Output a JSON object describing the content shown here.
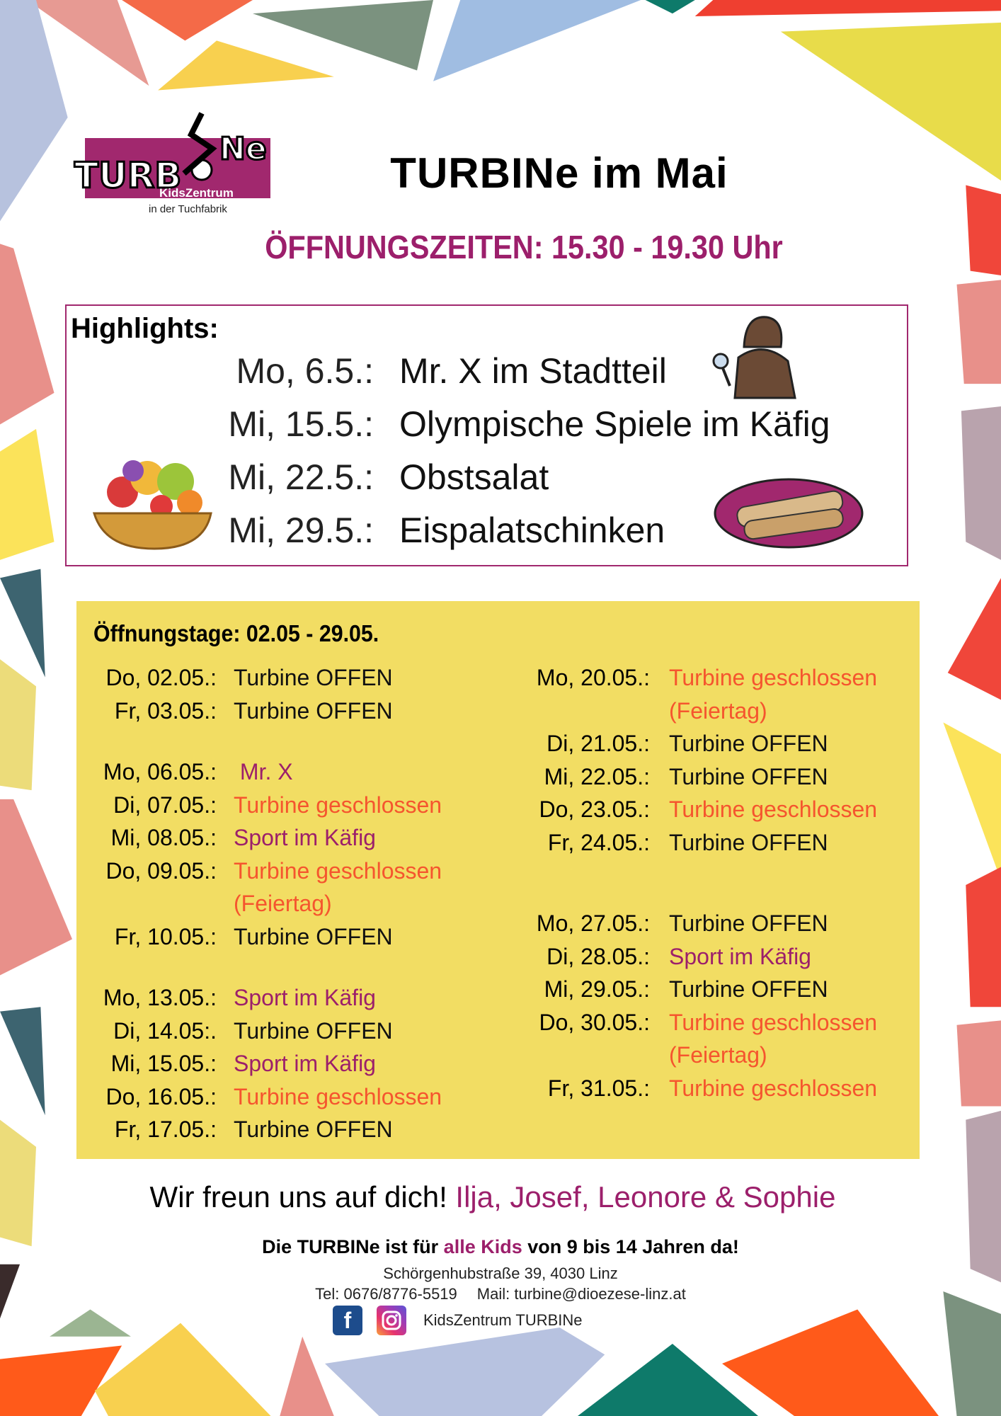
{
  "header": {
    "logo_text": "TURBINe KidsZentrum in der Tuchfabrik",
    "title": "TURBINe im Mai",
    "hours": "ÖFFNUNGSZEITEN: 15.30 - 19.30 Uhr"
  },
  "highlights": {
    "title": "Highlights:",
    "items": [
      {
        "date": "Mo, 6.5.:",
        "event": "Mr. X im Stadtteil"
      },
      {
        "date": "Mi, 15.5.:",
        "event": "Olympische Spiele im Käfig"
      },
      {
        "date": "Mi, 22.5.:",
        "event": "Obstsalat"
      },
      {
        "date": "Mi, 29.5.:",
        "event": "Eispalatschinken"
      }
    ]
  },
  "schedule": {
    "title": "Öffnungstage: 02.05 - 29.05.",
    "colors": {
      "open": "#111111",
      "closed": "#f5552e",
      "sport": "#9c1f6b",
      "background": "#f2dd63"
    },
    "left": [
      [
        {
          "date": "Do, 02.05.:",
          "text": "Turbine OFFEN",
          "type": "open"
        },
        {
          "date": "Fr, 03.05.:",
          "text": "Turbine OFFEN",
          "type": "open"
        }
      ],
      [
        {
          "date": "Mo, 06.05.:",
          "text": " Mr. X",
          "type": "sport"
        },
        {
          "date": "Di, 07.05.:",
          "text": "Turbine geschlossen",
          "type": "closed"
        },
        {
          "date": "Mi, 08.05.:",
          "text": "Sport im Käfig",
          "type": "sport"
        },
        {
          "date": "Do, 09.05.:",
          "text": "Turbine geschlossen",
          "note": "(Feiertag)",
          "type": "closed"
        },
        {
          "date": "Fr, 10.05.:",
          "text": "Turbine OFFEN",
          "type": "open"
        }
      ],
      [
        {
          "date": "Mo, 13.05.:",
          "text": "Sport im Käfig",
          "type": "sport"
        },
        {
          "date": "Di, 14.05:.",
          "text": "Turbine OFFEN",
          "type": "open"
        },
        {
          "date": "Mi, 15.05.:",
          "text": "Sport im Käfig",
          "type": "sport"
        },
        {
          "date": "Do, 16.05.:",
          "text": "Turbine geschlossen",
          "type": "closed"
        },
        {
          "date": "Fr, 17.05.:",
          "text": "Turbine OFFEN",
          "type": "open"
        }
      ]
    ],
    "right": [
      [
        {
          "date": "Mo, 20.05.:",
          "text": "Turbine geschlossen",
          "note": "(Feiertag)",
          "type": "closed"
        },
        {
          "date": "Di, 21.05.:",
          "text": "Turbine OFFEN",
          "type": "open"
        },
        {
          "date": "Mi, 22.05.:",
          "text": "Turbine OFFEN",
          "type": "open"
        },
        {
          "date": "Do, 23.05.:",
          "text": "Turbine geschlossen",
          "type": "closed"
        },
        {
          "date": "Fr, 24.05.:",
          "text": "Turbine OFFEN",
          "type": "open"
        }
      ],
      [
        {
          "date": "Mo, 27.05.:",
          "text": "Turbine OFFEN",
          "type": "open"
        },
        {
          "date": "Di, 28.05.:",
          "text": "Sport im Käfig",
          "type": "sport"
        },
        {
          "date": "Mi, 29.05.:",
          "text": "Turbine OFFEN",
          "type": "open"
        },
        {
          "date": "Do, 30.05.:",
          "text": "Turbine geschlossen",
          "note": "(Feiertag)",
          "type": "closed"
        },
        {
          "date": "Fr, 31.05.:",
          "text": "Turbine geschlossen",
          "type": "closed"
        }
      ]
    ]
  },
  "footer": {
    "thanks_prefix": "Wir freun uns auf dich! ",
    "thanks_names": "Ilja, Josef, Leonore & Sophie",
    "kids_a": "Die TURBINe ist für ",
    "kids_b": "alle Kids",
    "kids_c": " von 9 bis 14 Jahren da!",
    "address": "Schörgenhubstraße 39, 4030 Linz",
    "tel": "Tel: 0676/8776-5519",
    "mail": "Mail: turbine@dioezese-linz.at",
    "social": "KidsZentrum TURBINe",
    "icons": [
      "facebook-icon",
      "instagram-icon"
    ]
  }
}
